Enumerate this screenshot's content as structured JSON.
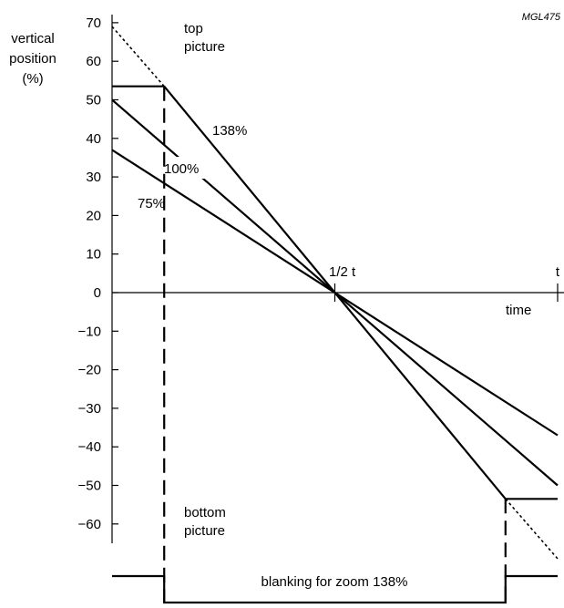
{
  "chart_data": {
    "type": "line",
    "code": "MGL475",
    "ylabel_lines": [
      "vertical",
      "position",
      "(%)"
    ],
    "xlabel": "time",
    "ylim": [
      -70,
      70
    ],
    "y_ticks": [
      70,
      60,
      50,
      40,
      30,
      20,
      10,
      0,
      -10,
      -20,
      -30,
      -40,
      -50,
      -60
    ],
    "y_tick_labels": [
      "70",
      "60",
      "50",
      "40",
      "30",
      "20",
      "10",
      "0",
      "−10",
      "−20",
      "−30",
      "−40",
      "−50",
      "−60"
    ],
    "x_marks": [
      {
        "label": "1/2 t",
        "x": 0.5
      },
      {
        "label": "t",
        "x": 1
      }
    ],
    "region_labels": {
      "top": [
        "top",
        "picture"
      ],
      "bottom": [
        "bottom",
        "picture"
      ]
    },
    "series": [
      {
        "label": "138%",
        "points": [
          [
            0.117,
            53.5
          ],
          [
            0.5,
            0
          ],
          [
            0.883,
            -53.5
          ],
          [
            1,
            -53.5
          ]
        ],
        "style": "solid"
      },
      {
        "label": "100%",
        "points": [
          [
            0,
            50
          ],
          [
            1,
            -50
          ]
        ],
        "style": "solid"
      },
      {
        "label": "75%",
        "points": [
          [
            0,
            37
          ],
          [
            1,
            -37
          ]
        ],
        "style": "solid"
      },
      {
        "label": "",
        "points": [
          [
            0,
            69
          ],
          [
            0.117,
            53.5
          ]
        ],
        "style": "dotted"
      },
      {
        "label": "",
        "points": [
          [
            0.883,
            -53.5
          ],
          [
            1,
            -69
          ]
        ],
        "style": "dotted"
      }
    ],
    "top_plateau": {
      "x_start": 0,
      "x_end": 0.117,
      "y": 53.5
    },
    "blanking": {
      "label": "blanking for zoom 138%",
      "x_start": 0.117,
      "x_end": 0.883
    }
  }
}
